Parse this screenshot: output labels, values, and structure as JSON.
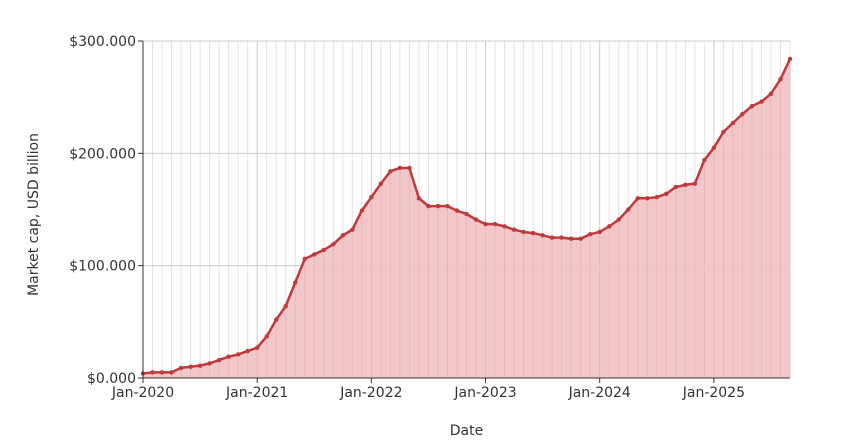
{
  "chart_data": {
    "type": "area",
    "title": "",
    "xlabel": "Date",
    "ylabel": "Market cap, USD billion",
    "x_ticks": [
      "Jan-2020",
      "Jan-2021",
      "Jan-2022",
      "Jan-2023",
      "Jan-2024",
      "Jan-2025"
    ],
    "y_ticks": [
      "$0.000",
      "$100.000",
      "$200.000",
      "$300.000"
    ],
    "ylim": [
      0,
      300
    ],
    "grid": true,
    "colors": {
      "line": "#c0393b",
      "fill": "#f0c1c3",
      "grid_major": "#cccccc",
      "grid_minor": "#e3e3e3",
      "axis": "#333333"
    },
    "series": [
      {
        "x": [
          "2020-01",
          "2020-02",
          "2020-03",
          "2020-04",
          "2020-05",
          "2020-06",
          "2020-07",
          "2020-08",
          "2020-09",
          "2020-10",
          "2020-11",
          "2020-12",
          "2021-01",
          "2021-02",
          "2021-03",
          "2021-04",
          "2021-05",
          "2021-06",
          "2021-07",
          "2021-08",
          "2021-09",
          "2021-10",
          "2021-11",
          "2021-12",
          "2022-01",
          "2022-02",
          "2022-03",
          "2022-04",
          "2022-05",
          "2022-06",
          "2022-07",
          "2022-08",
          "2022-09",
          "2022-10",
          "2022-11",
          "2022-12",
          "2023-01",
          "2023-02",
          "2023-03",
          "2023-04",
          "2023-05",
          "2023-06",
          "2023-07",
          "2023-08",
          "2023-09",
          "2023-10",
          "2023-11",
          "2023-12",
          "2024-01",
          "2024-02",
          "2024-03",
          "2024-04",
          "2024-05",
          "2024-06",
          "2024-07",
          "2024-08",
          "2024-09",
          "2024-10",
          "2024-11",
          "2024-12",
          "2025-01",
          "2025-02",
          "2025-03",
          "2025-04",
          "2025-05",
          "2025-06",
          "2025-07",
          "2025-08",
          "2025-09"
        ],
        "values": [
          4,
          5,
          5,
          5,
          9,
          10,
          11,
          13,
          16,
          19,
          21,
          24,
          27,
          37,
          52,
          64,
          85,
          106,
          110,
          114,
          119,
          127,
          132,
          149,
          161,
          173,
          184,
          187,
          187,
          160,
          153,
          153,
          153,
          149,
          146,
          141,
          137,
          137,
          135,
          132,
          130,
          129,
          127,
          125,
          125,
          124,
          124,
          128,
          130,
          135,
          141,
          150,
          160,
          160,
          161,
          164,
          170,
          172,
          173,
          194,
          205,
          219,
          227,
          235,
          242,
          246,
          253,
          266,
          284
        ]
      }
    ]
  }
}
